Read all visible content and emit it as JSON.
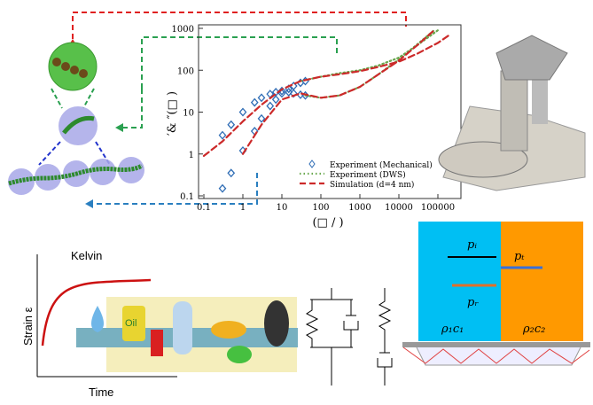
{
  "chart_data": {
    "type": "scatter-line",
    "x_label": "(□ / )",
    "y_label": "′& ″(□ )",
    "xlim": [
      0.1,
      300000
    ],
    "ylim": [
      0.1,
      1000
    ],
    "log_x": true,
    "log_y": true,
    "xticks": [
      0.1,
      1,
      10,
      100,
      1000,
      10000,
      100000
    ],
    "yticks": [
      0.1,
      1,
      10,
      100,
      1000
    ],
    "series": [
      {
        "name": "Experiment (Mechanical)",
        "color": "#2f6db5",
        "style": "diamond",
        "curves": [
          {
            "x": [
              0.3,
              0.5,
              1,
              2,
              3,
              5,
              7,
              10,
              15,
              20,
              30,
              40
            ],
            "values": [
              2.8,
              5,
              10,
              17,
              22,
              27,
              30,
              32,
              30,
              28,
              26,
              25
            ]
          },
          {
            "x": [
              0.3,
              0.5,
              1,
              2,
              3,
              5,
              7,
              10,
              15,
              20,
              30,
              40
            ],
            "values": [
              0.15,
              0.35,
              1.2,
              3.5,
              7,
              14,
              20,
              28,
              36,
              42,
              50,
              55
            ]
          }
        ]
      },
      {
        "name": "Experiment (DWS)",
        "color": "#6aa84f",
        "style": "dotted",
        "curves": [
          {
            "x": [
              30,
              100,
              300,
              1000,
              3000,
              10000,
              30000,
              100000
            ],
            "values": [
              55,
              70,
              85,
              100,
              130,
              200,
              400,
              900
            ]
          },
          {
            "x": [
              40,
              100,
              300,
              1000,
              3000,
              10000,
              30000,
              80000
            ],
            "values": [
              25,
              22,
              25,
              40,
              80,
              180,
              420,
              900
            ]
          }
        ]
      },
      {
        "name": "Simulation (d=4 nm)",
        "color": "#cc2a2a",
        "style": "dashed",
        "curves": [
          {
            "x": [
              0.1,
              0.3,
              1,
              3,
              10,
              30,
              100,
              300,
              1000,
              3000,
              10000,
              30000,
              100000,
              200000
            ],
            "values": [
              0.9,
              2,
              6,
              15,
              35,
              55,
              70,
              80,
              95,
              120,
              160,
              250,
              450,
              700
            ]
          },
          {
            "x": [
              1,
              3,
              10,
              30,
              100,
              300,
              1000,
              10000,
              30000,
              80000
            ],
            "values": [
              1,
              5,
              20,
              28,
              22,
              25,
              40,
              170,
              400,
              900
            ]
          }
        ]
      }
    ]
  },
  "kelvin": {
    "title": "Kelvin",
    "y_label": "Strain ε",
    "x_label": "Time",
    "bottle_label": "Oil"
  },
  "acoustic": {
    "incident": "pᵢ",
    "transmitted": "pₜ",
    "reflected": "pᵣ",
    "medium_1": "ρ₁c₁",
    "medium_2": "ρ₂c₂"
  }
}
